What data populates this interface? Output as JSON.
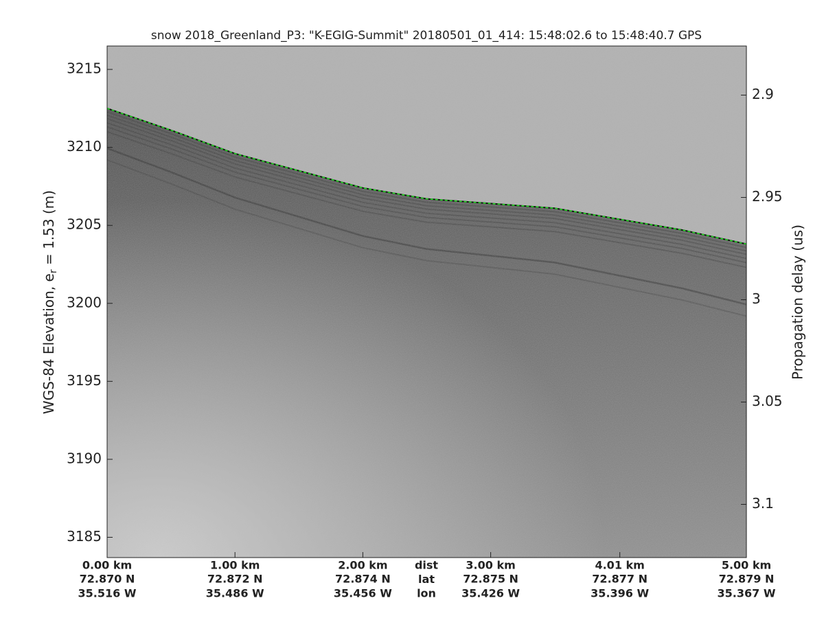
{
  "chart_data": {
    "type": "echogram",
    "title": "snow 2018_Greenland_P3: \"K-EGIG-Summit\"  20180501_01_414: 15:48:02.6 to 15:48:40.7 GPS",
    "ylabel": {
      "text": "WGS-84 Elevation, e",
      "sub": "r",
      "rest": " = 1.53 (m)"
    },
    "y2label": "Propagation delay (us)",
    "ylim": [
      3183.7,
      3216.5
    ],
    "yticks": [
      3185,
      3190,
      3195,
      3200,
      3205,
      3210,
      3215
    ],
    "y2lim": [
      3.126,
      2.876
    ],
    "y2ticks": [
      2.9,
      2.95,
      3,
      3.05,
      3.1
    ],
    "xlim": [
      0,
      5
    ],
    "xticks": [
      {
        "value": 0,
        "label": "0.00 km"
      },
      {
        "value": 1,
        "label": "1.00 km"
      },
      {
        "value": 2,
        "label": "2.00 km"
      },
      {
        "value": 3,
        "label": "3.00 km"
      },
      {
        "value": 4.01,
        "label": "4.01 km"
      },
      {
        "value": 5,
        "label": "5.00 km"
      }
    ],
    "lat_labels": [
      "72.870 N",
      "72.872 N",
      "72.874 N",
      "72.875 N",
      "72.877 N",
      "72.879 N"
    ],
    "lon_labels": [
      "35.516 W",
      "35.486 W",
      "35.456 W",
      "35.426 W",
      "35.396 W",
      "35.367 W"
    ],
    "row_names": [
      "dist",
      "lat",
      "lon"
    ],
    "series": [
      {
        "color": "#22dd22",
        "x": [
          0,
          0.5,
          1,
          1.5,
          2,
          2.5,
          3,
          3.5,
          4,
          4.5,
          5
        ],
        "values": [
          3212.5,
          3211.1,
          3209.6,
          3208.5,
          3207.4,
          3206.7,
          3206.4,
          3206.1,
          3205.4,
          3204.7,
          3203.8
        ]
      }
    ]
  }
}
